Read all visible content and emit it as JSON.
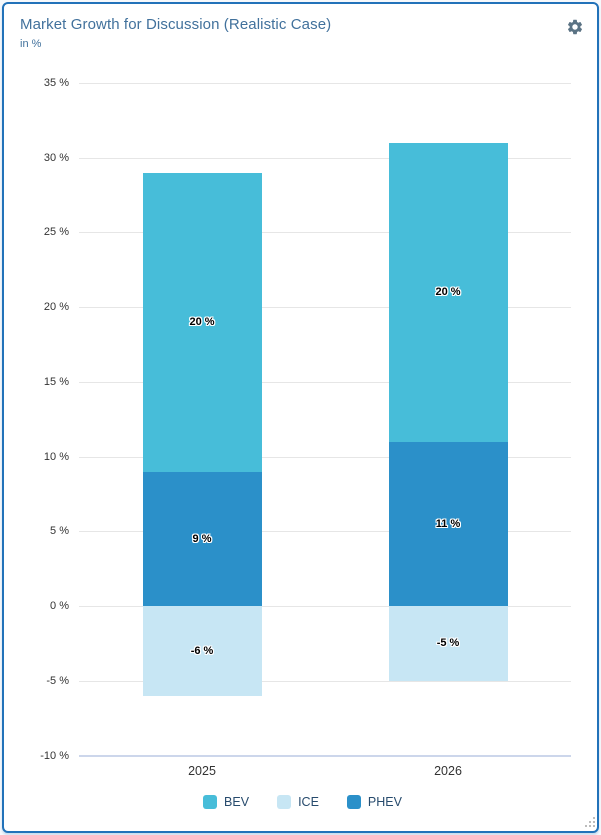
{
  "card": {
    "gear_tooltip": "settings"
  },
  "chart_data": {
    "type": "bar",
    "stacked": true,
    "title": "Market Growth for Discussion (Realistic Case)",
    "subtitle": "in %",
    "categories": [
      "2025",
      "2026"
    ],
    "series": [
      {
        "name": "PHEV",
        "color": "#2b90c9",
        "values": [
          9,
          11
        ]
      },
      {
        "name": "BEV",
        "color": "#47bdd9",
        "values": [
          20,
          20
        ]
      },
      {
        "name": "ICE",
        "color": "#c7e6f4",
        "values": [
          -6,
          -5
        ]
      }
    ],
    "legend": [
      {
        "label": "BEV",
        "color": "#47bdd9"
      },
      {
        "label": "ICE",
        "color": "#c7e6f4"
      },
      {
        "label": "PHEV",
        "color": "#2b90c9"
      }
    ],
    "legend_position": "bottom",
    "grid": true,
    "ylim": [
      -10,
      35
    ],
    "tick_step": 5,
    "tick_suffix": " %",
    "data_label_suffix": " %",
    "stack_totals": {
      "2025": 29,
      "2026": 31
    }
  }
}
